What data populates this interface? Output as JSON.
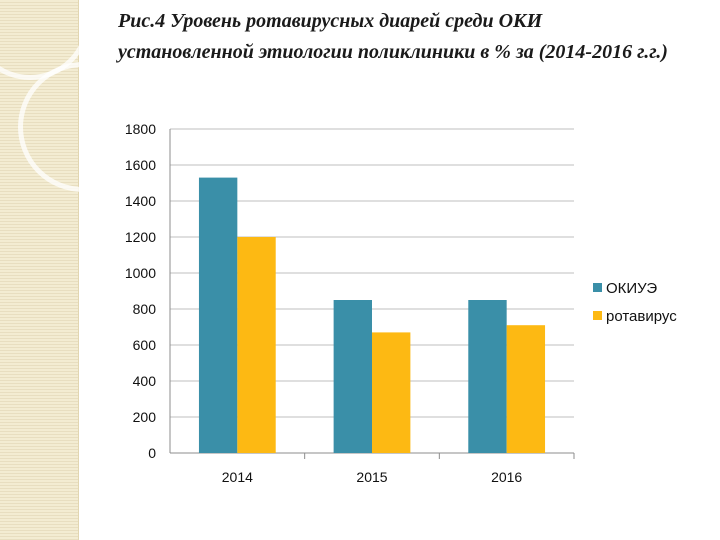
{
  "title": "Рис.4 Уровень ротавирусных диарей среди ОКИ установленной этиологии   поликлиники в % за (2014-2016 г.г.)",
  "chart_data": {
    "type": "bar",
    "categories": [
      "2014",
      "2015",
      "2016"
    ],
    "series": [
      {
        "name": "ОКИУЭ",
        "color": "#3a8fa8",
        "values": [
          1530,
          850,
          850
        ]
      },
      {
        "name": "ротавирус",
        "color": "#fdb913",
        "values": [
          1200,
          670,
          710
        ]
      }
    ],
    "ylim": [
      0,
      1800
    ],
    "yticks": [
      0,
      200,
      400,
      600,
      800,
      1000,
      1200,
      1400,
      1600,
      1800
    ],
    "grid": true,
    "legend_position": "right"
  }
}
